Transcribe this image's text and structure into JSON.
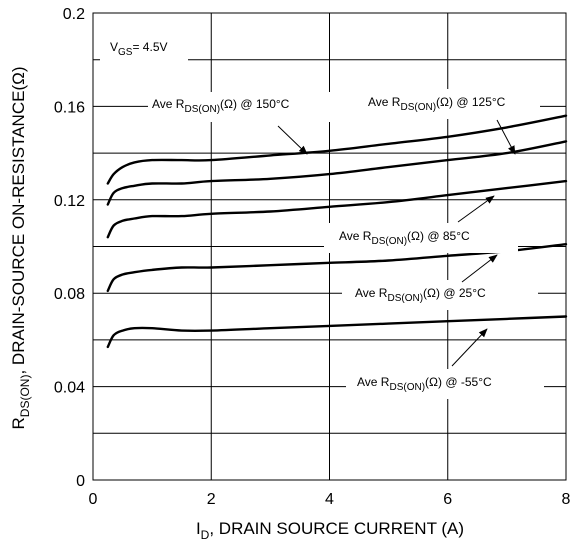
{
  "chart_data": {
    "type": "line",
    "xlabel": {
      "main": "I",
      "sub": "D",
      "rest": ", DRAIN SOURCE CURRENT (A)"
    },
    "ylabel": {
      "main": "R",
      "sub": "DS(ON)",
      "rest": ", DRAIN-SOURCE ON-RESISTANCE(Ω)"
    },
    "xlim": [
      0,
      8
    ],
    "ylim": [
      0,
      0.2
    ],
    "x_ticks": [
      "0",
      "2",
      "4",
      "6",
      "8"
    ],
    "y_ticks": [
      "0",
      "0.04",
      "0.08",
      "0.12",
      "0.16",
      "0.2"
    ],
    "grid": true,
    "condition": {
      "main": "V",
      "sub": "GS",
      "rest": "= 4.5V"
    },
    "series": [
      {
        "label": {
          "pre": "Ave R",
          "sub": "DS(ON)",
          "post": "(Ω) @ 150°C"
        },
        "x": [
          0.25,
          0.35,
          0.5,
          0.7,
          1.0,
          1.5,
          2.0,
          3.0,
          4.0,
          5.0,
          6.0,
          7.0,
          8.0
        ],
        "y": [
          0.127,
          0.131,
          0.134,
          0.136,
          0.137,
          0.137,
          0.137,
          0.139,
          0.141,
          0.144,
          0.147,
          0.151,
          0.156
        ]
      },
      {
        "label": {
          "pre": "Ave R",
          "sub": "DS(ON)",
          "post": "(Ω) @ 125°C"
        },
        "x": [
          0.25,
          0.35,
          0.5,
          0.7,
          1.0,
          1.5,
          2.0,
          3.0,
          4.0,
          5.0,
          6.0,
          7.0,
          8.0
        ],
        "y": [
          0.118,
          0.123,
          0.125,
          0.126,
          0.127,
          0.127,
          0.128,
          0.129,
          0.131,
          0.134,
          0.137,
          0.14,
          0.145
        ]
      },
      {
        "label": {
          "pre": "Ave R",
          "sub": "DS(ON)",
          "post": "(Ω) @ 85°C"
        },
        "x": [
          0.25,
          0.35,
          0.5,
          0.7,
          1.0,
          1.5,
          2.0,
          3.0,
          4.0,
          5.0,
          6.0,
          7.0,
          8.0
        ],
        "y": [
          0.104,
          0.109,
          0.111,
          0.112,
          0.113,
          0.113,
          0.114,
          0.115,
          0.117,
          0.119,
          0.122,
          0.125,
          0.128
        ]
      },
      {
        "label": {
          "pre": "Ave R",
          "sub": "DS(ON)",
          "post": "(Ω) @ 25°C"
        },
        "x": [
          0.25,
          0.35,
          0.5,
          0.7,
          1.0,
          1.5,
          2.0,
          3.0,
          4.0,
          5.0,
          6.0,
          7.0,
          8.0
        ],
        "y": [
          0.081,
          0.086,
          0.088,
          0.089,
          0.09,
          0.091,
          0.091,
          0.092,
          0.093,
          0.094,
          0.096,
          0.098,
          0.101
        ]
      },
      {
        "label": {
          "pre": "Ave R",
          "sub": "DS(ON)",
          "post": "(Ω) @ -55°C"
        },
        "x": [
          0.25,
          0.35,
          0.5,
          0.7,
          1.0,
          1.5,
          2.0,
          3.0,
          4.0,
          5.0,
          6.0,
          7.0,
          8.0
        ],
        "y": [
          0.057,
          0.062,
          0.064,
          0.065,
          0.065,
          0.064,
          0.064,
          0.065,
          0.066,
          0.067,
          0.068,
          0.069,
          0.07
        ]
      }
    ]
  }
}
